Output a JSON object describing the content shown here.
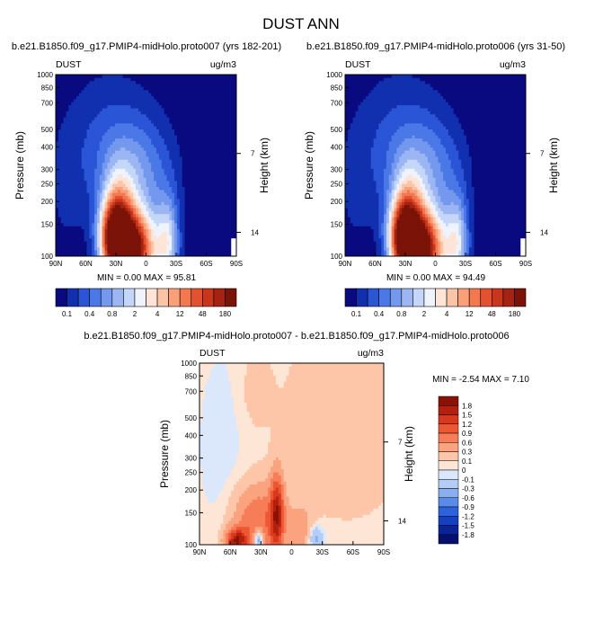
{
  "figure": {
    "title": "DUST ANN"
  },
  "panels": [
    {
      "title": "b.e21.B1850.f09_g17.PMIP4-midHolo.proto007 (yrs 182-201)",
      "left_label": "DUST",
      "right_label": "ug/m3",
      "minmax_text": "MIN =  0.00  MAX =  95.81"
    },
    {
      "title": "b.e21.B1850.f09_g17.PMIP4-midHolo.proto006 (yrs 31-50)",
      "left_label": "DUST",
      "right_label": "ug/m3",
      "minmax_text": "MIN =  0.00  MAX =  94.49"
    },
    {
      "title": "b.e21.B1850.f09_g17.PMIP4-midHolo.proto007 - b.e21.B1850.f09_g17.PMIP4-midHolo.proto006",
      "left_label": "DUST",
      "right_label": "ug/m3",
      "minmax_text": "MIN = -2.54  MAX =  7.10"
    }
  ],
  "axes": {
    "ylabel": "Pressure (mb)",
    "ylabel_right": "Height (km)"
  },
  "colorbars": {
    "abs": {
      "labels": [
        "0.1",
        "0.4",
        "0.8",
        "2",
        "4",
        "12",
        "48",
        "180"
      ],
      "colors": [
        "#0a0a80",
        "#1030b0",
        "#2a55d6",
        "#4a78e6",
        "#7498ee",
        "#9bb6f2",
        "#c5d7f8",
        "#eef3fd",
        "#fde4d6",
        "#fcc4a6",
        "#f9a07a",
        "#f37850",
        "#e4512e",
        "#c8361b",
        "#a42312",
        "#7a1308"
      ]
    },
    "diff": {
      "labels": [
        "1.8",
        "1.5",
        "1.2",
        "0.9",
        "0.6",
        "0.3",
        "0.1",
        "0",
        "-0.1",
        "-0.3",
        "-0.6",
        "-0.9",
        "-1.2",
        "-1.5",
        "-1.8"
      ],
      "colors": [
        "#8a1205",
        "#b4200e",
        "#d8381c",
        "#ee5733",
        "#f67d57",
        "#fba27f",
        "#fdc6a8",
        "#fde6d6",
        "#dbe8fb",
        "#b3cdf6",
        "#89aff0",
        "#5b8be8",
        "#2d62dc",
        "#1540c0",
        "#0a2498",
        "#050f70"
      ]
    }
  },
  "chart_data": [
    {
      "type": "heatmap",
      "title": "b.e21.B1850.f09_g17.PMIP4-midHolo.proto007 (yrs 182-201)",
      "variable": "DUST",
      "units": "ug/m3",
      "xlabel": "",
      "ylabel": "Pressure (mb)",
      "ylabel_right": "Height (km)",
      "x_ticks": [
        "90N",
        "60N",
        "30N",
        "0",
        "30S",
        "60S",
        "90S"
      ],
      "x_tick_values": [
        90,
        60,
        30,
        0,
        -30,
        -60,
        -90
      ],
      "y_ticks": [
        100,
        150,
        200,
        250,
        300,
        400,
        500,
        700,
        850,
        1000
      ],
      "y_right_ticks": [
        14,
        7
      ],
      "min": 0.0,
      "max": 95.81,
      "contour_levels": [
        0.1,
        0.2,
        0.4,
        0.6,
        0.8,
        1,
        2,
        3,
        4,
        8,
        12,
        24,
        48,
        96,
        180
      ]
    },
    {
      "type": "heatmap",
      "title": "b.e21.B1850.f09_g17.PMIP4-midHolo.proto006 (yrs 31-50)",
      "variable": "DUST",
      "units": "ug/m3",
      "xlabel": "",
      "ylabel": "Pressure (mb)",
      "ylabel_right": "Height (km)",
      "x_ticks": [
        "90N",
        "60N",
        "30N",
        "0",
        "30S",
        "60S",
        "90S"
      ],
      "x_tick_values": [
        90,
        60,
        30,
        0,
        -30,
        -60,
        -90
      ],
      "y_ticks": [
        100,
        150,
        200,
        250,
        300,
        400,
        500,
        700,
        850,
        1000
      ],
      "y_right_ticks": [
        14,
        7
      ],
      "min": 0.0,
      "max": 94.49,
      "contour_levels": [
        0.1,
        0.2,
        0.4,
        0.6,
        0.8,
        1,
        2,
        3,
        4,
        8,
        12,
        24,
        48,
        96,
        180
      ]
    },
    {
      "type": "heatmap",
      "title": "b.e21.B1850.f09_g17.PMIP4-midHolo.proto007 - b.e21.B1850.f09_g17.PMIP4-midHolo.proto006",
      "variable": "DUST",
      "units": "ug/m3",
      "xlabel": "",
      "ylabel": "Pressure (mb)",
      "ylabel_right": "Height (km)",
      "x_ticks": [
        "90N",
        "60N",
        "30N",
        "0",
        "30S",
        "60S",
        "90S"
      ],
      "x_tick_values": [
        90,
        60,
        30,
        0,
        -30,
        -60,
        -90
      ],
      "y_ticks": [
        100,
        150,
        200,
        250,
        300,
        400,
        500,
        700,
        850,
        1000
      ],
      "y_right_ticks": [
        14,
        7
      ],
      "min": -2.54,
      "max": 7.1,
      "contour_levels": [
        -1.8,
        -1.5,
        -1.2,
        -0.9,
        -0.6,
        -0.3,
        -0.1,
        0,
        0.1,
        0.3,
        0.6,
        0.9,
        1.2,
        1.5,
        1.8
      ]
    }
  ]
}
